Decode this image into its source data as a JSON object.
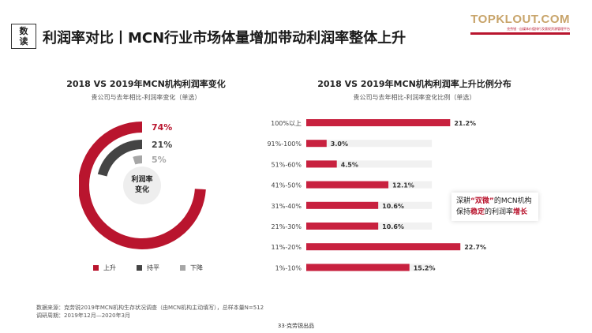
{
  "header": {
    "tag_line1": "数",
    "tag_line2": "读",
    "title": "利润率对比丨MCN行业市场体量增加带动利润率整体上升"
  },
  "logo": {
    "name": "TOPKLOUT.COM",
    "sub": "克劳锐 · 自媒体价值排行及版权资源管理平台"
  },
  "colors": {
    "rise": "#b9152e",
    "flat": "#444444",
    "fall": "#a6a6a6",
    "bar": "#c8213f"
  },
  "chart_data": [
    {
      "type": "pie",
      "title": "2018 VS 2019年MCN机构利润率变化",
      "subtitle": "贵公司与去年相比-利润率变化（单选）",
      "center_label_line1": "利润率",
      "center_label_line2": "变化",
      "categories": [
        "上升",
        "持平",
        "下降"
      ],
      "values": [
        74,
        21,
        5
      ],
      "value_labels": [
        "74%",
        "21%",
        "5%"
      ],
      "legend_placement": "bottom"
    },
    {
      "type": "bar",
      "orientation": "horizontal",
      "title": "2018 VS 2019年MCN机构利润率上升比例分布",
      "subtitle": "贵公司与去年相比-利润率变化比例（单选）",
      "categories": [
        "100%以上",
        "91%-100%",
        "51%-60%",
        "41%-50%",
        "31%-40%",
        "21%-30%",
        "11%-20%",
        "1%-10%"
      ],
      "values": [
        21.2,
        3.0,
        4.5,
        12.1,
        10.6,
        10.6,
        22.7,
        15.2
      ],
      "value_labels": [
        "21.2%",
        "3.0%",
        "4.5%",
        "12.1%",
        "10.6%",
        "10.6%",
        "22.7%",
        "15.2%"
      ]
    }
  ],
  "callout": {
    "p1": "深耕",
    "p2": "“双微”",
    "p3": "的MCN机构保持",
    "p4": "稳定",
    "p5": "的利润率",
    "p6": "增长"
  },
  "source": {
    "line1": "数据来源：克劳锐2019年MCN机构生存状况调查（由MCN机构主动填写），总样本量N=512",
    "line2": "调研周期：2019年12月—2020年3月"
  },
  "footer": "33·克劳锐出品"
}
